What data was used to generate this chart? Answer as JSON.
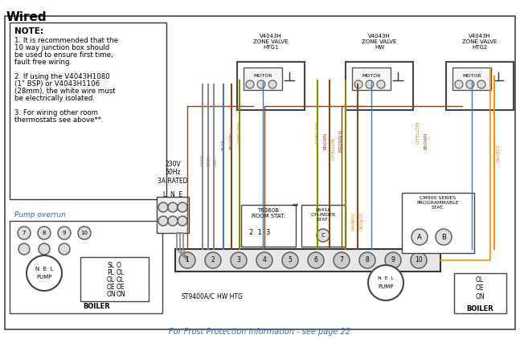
{
  "title": "Wired",
  "bg_color": "#ffffff",
  "border_color": "#555555",
  "note_title": "NOTE:",
  "note_lines": [
    "1. It is recommended that the",
    "10 way junction box should",
    "be used to ensure first time,",
    "fault free wiring.",
    "",
    "2. If using the V4043H1080",
    "(1\" BSP) or V4043H1106",
    "(28mm), the white wire must",
    "be electrically isolated.",
    "",
    "3. For wiring other room",
    "thermostats see above**."
  ],
  "pump_overrun_label": "Pump overrun",
  "frost_text": "For Frost Protection information - see page 22",
  "zone_valve_labels": [
    "V4043H\nZONE VALVE\nHTG1",
    "V4043H\nZONE VALVE\nHW",
    "V4043H\nZONE VALVE\nHTG2"
  ],
  "wire_colors": {
    "grey": "#888888",
    "blue": "#4472c4",
    "brown": "#8B4513",
    "gyellow": "#999900",
    "orange": "#FF8C00"
  },
  "power_label": "230V\n50Hz\n3A RATED",
  "lne_label": "L  N  E",
  "t6360b_label": "T6360B\nROOM STAT.",
  "l641a_label": "L641A\nCYLINDER\nSTAT.",
  "cm900_label": "CM900 SERIES\nPROGRAMMABLE\nSTAT.",
  "st9400_label": "ST9400A/C",
  "hw_htg_label": "HW HTG",
  "boiler_label": "BOILER",
  "pump_label": "PUMP"
}
